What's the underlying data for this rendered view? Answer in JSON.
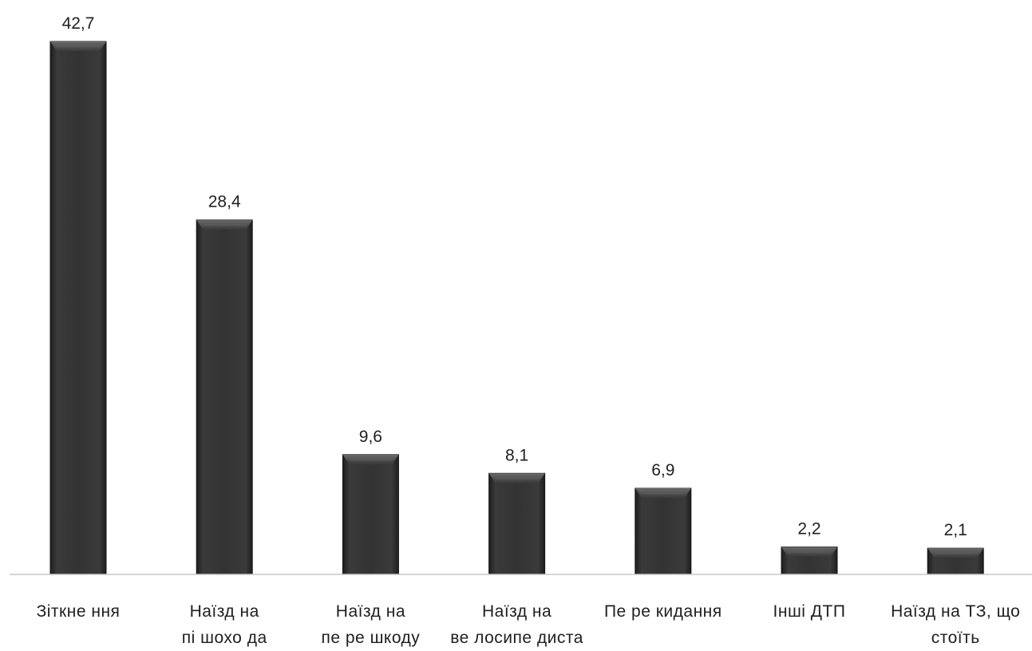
{
  "chart_data": {
    "type": "bar",
    "categories": [
      [
        "Зіткне ння"
      ],
      [
        "Наїзд на",
        "пі шохо да"
      ],
      [
        "Наїзд на",
        "пе ре шкоду"
      ],
      [
        "Наїзд на",
        "ве лосипе диста"
      ],
      [
        "Пе ре кидання"
      ],
      [
        "Інші ДТП"
      ],
      [
        "Наїзд на ТЗ, що",
        "стоїть"
      ]
    ],
    "values": [
      42.7,
      28.4,
      9.6,
      8.1,
      6.9,
      2.2,
      2.1
    ],
    "value_labels": [
      "42,7",
      "28,4",
      "9,6",
      "8,1",
      "6,9",
      "2,2",
      "2,1"
    ],
    "title": "",
    "xlabel": "",
    "ylabel": "",
    "ylim": [
      0,
      42.7
    ],
    "grid": false,
    "legend": "none",
    "bar_color": "#333333",
    "bar_highlight_color": "#5a5a5a",
    "axis_color": "#c8c8c8"
  }
}
